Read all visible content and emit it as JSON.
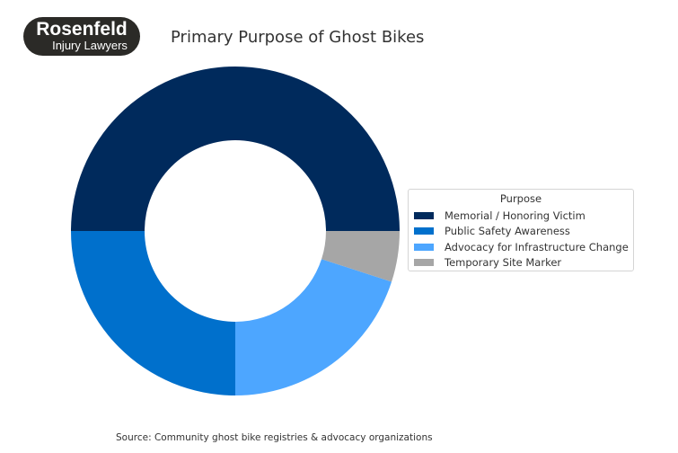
{
  "logo": {
    "line1": "Rosenfeld",
    "line2": "Injury Lawyers"
  },
  "chart_data": {
    "type": "pie",
    "donut": true,
    "title": "Primary Purpose of Ghost Bikes",
    "legend_title": "Purpose",
    "legend_placement": "right",
    "categories": [
      "Memorial / Honoring Victim",
      "Public Safety Awareness",
      "Advocacy for Infrastructure Change",
      "Temporary Site Marker"
    ],
    "values": [
      50,
      25,
      20,
      5
    ],
    "colors": [
      "#002a5c",
      "#0070cc",
      "#4da6ff",
      "#a6a6a6"
    ]
  },
  "source": "Source: Community ghost bike registries & advocacy organizations"
}
